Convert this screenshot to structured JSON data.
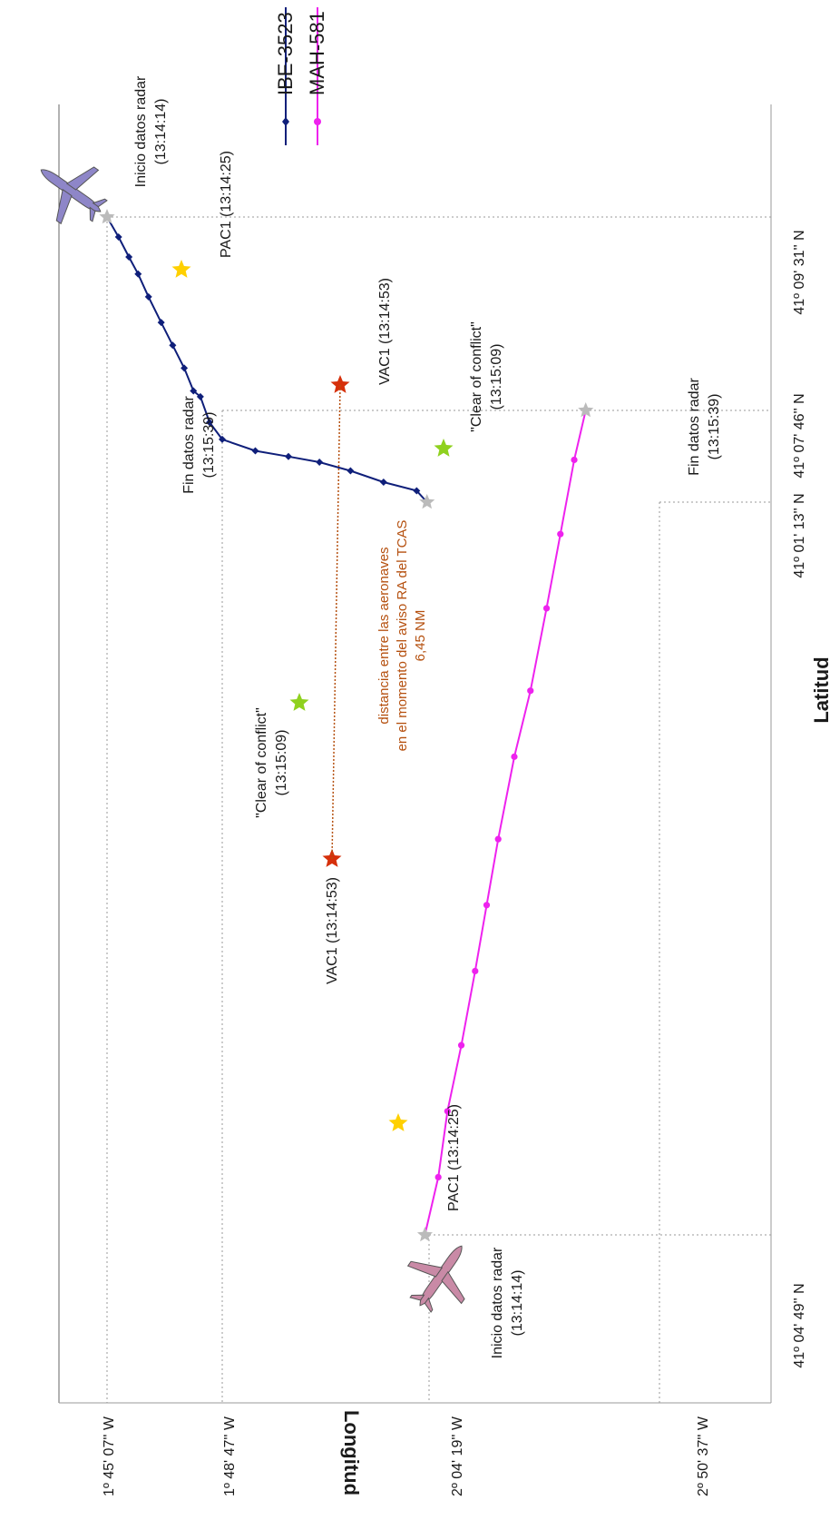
{
  "chart_data": {
    "type": "line",
    "xlabel": "Latitud",
    "ylabel": "Longitud",
    "x_ticks": [
      "41º 09' 31'' N",
      "41º 07' 46'' N",
      "41º 01' 13'' N",
      "41º 04' 49'' N"
    ],
    "y_ticks": [
      "1º 45' 07'' W",
      "1º 48' 47'' W",
      "2º 04' 19'' W",
      "2º 50' 37'' W"
    ],
    "grid": "dotted reference lines",
    "legend_position": "top-right",
    "series": [
      {
        "name": "IBE-3523",
        "color": "#0f1f7a",
        "marker": "diamond",
        "points": [
          {
            "lat": 0.0,
            "lon": 0.0
          },
          {
            "lat": 0.07,
            "lon": 0.1
          },
          {
            "lat": 0.14,
            "lon": 0.19
          },
          {
            "lat": 0.2,
            "lon": 0.27
          },
          {
            "lat": 0.28,
            "lon": 0.36
          },
          {
            "lat": 0.37,
            "lon": 0.47
          },
          {
            "lat": 0.45,
            "lon": 0.57
          },
          {
            "lat": 0.53,
            "lon": 0.67
          },
          {
            "lat": 0.61,
            "lon": 0.75
          },
          {
            "lat": 0.63,
            "lon": 0.81
          },
          {
            "lat": 0.72,
            "lon": 0.89
          },
          {
            "lat": 0.78,
            "lon": 1.0
          },
          {
            "lat": 0.82,
            "lon": 1.16
          },
          {
            "lat": 0.84,
            "lon": 1.32
          },
          {
            "lat": 0.86,
            "lon": 1.47
          },
          {
            "lat": 0.89,
            "lon": 1.62
          },
          {
            "lat": 0.93,
            "lon": 1.78
          },
          {
            "lat": 0.96,
            "lon": 1.94
          },
          {
            "lat": 1.0,
            "lon": 1.99
          }
        ]
      },
      {
        "name": "MAH-581",
        "color": "#ee22ee",
        "marker": "circle",
        "points": [
          {
            "lat": 1.0,
            "lon": 2.68
          },
          {
            "lat": 0.94,
            "lon": 2.63
          },
          {
            "lat": 0.85,
            "lon": 2.57
          },
          {
            "lat": 0.76,
            "lon": 2.51
          },
          {
            "lat": 0.66,
            "lon": 2.44
          },
          {
            "lat": 0.58,
            "lon": 2.37
          },
          {
            "lat": 0.48,
            "lon": 2.3
          },
          {
            "lat": 0.4,
            "lon": 2.25
          },
          {
            "lat": 0.32,
            "lon": 2.2
          },
          {
            "lat": 0.23,
            "lon": 2.14
          },
          {
            "lat": 0.15,
            "lon": 2.08
          },
          {
            "lat": 0.07,
            "lon": 2.04
          },
          {
            "lat": 0.0,
            "lon": 1.98
          }
        ]
      }
    ],
    "events": [
      {
        "type": "start",
        "series": "IBE-3523",
        "label": "Inicio datos radar",
        "time": "(13:14:14)",
        "color": "#bbbbbb"
      },
      {
        "type": "PAC1",
        "series": "IBE-3523",
        "label": "PAC1 (13:14:25)",
        "color": "#ffd000"
      },
      {
        "type": "VAC1",
        "series": "IBE-3523",
        "label": "VAC1 (13:14:53)",
        "color": "#d6300b"
      },
      {
        "type": "clear",
        "series": "IBE-3523",
        "label": "\"Clear of conflict\"",
        "time": "(13:15:09)",
        "color": "#8fd11f"
      },
      {
        "type": "end",
        "series": "IBE-3523",
        "label": "Fin datos radar",
        "time": "(13:15:39)",
        "color": "#bbbbbb"
      },
      {
        "type": "start",
        "series": "MAH-581",
        "label": "Inicio datos radar",
        "time": "(13:14:14)",
        "color": "#bbbbbb"
      },
      {
        "type": "PAC1",
        "series": "MAH-581",
        "label": "PAC1 (13:14:25)",
        "color": "#ffd000"
      },
      {
        "type": "VAC1",
        "series": "MAH-581",
        "label": "VAC1 (13:14:53)",
        "color": "#d6300b"
      },
      {
        "type": "clear",
        "series": "MAH-581",
        "label": "\"Clear of conflict\"",
        "time": "(13:15:09)",
        "color": "#8fd11f"
      },
      {
        "type": "end",
        "series": "MAH-581",
        "label": "Fin datos radar",
        "time": "(13:15:39)",
        "color": "#bbbbbb"
      }
    ],
    "annotation": {
      "line1": "distancia entre las aeronaves",
      "line2": "en el momento del aviso RA del TCAS",
      "line3": "6,45 NM",
      "color": "#b5500f"
    },
    "aircraft_icons": [
      {
        "series": "IBE-3523",
        "icon": "airplane-icon",
        "color": "#8e86c8"
      },
      {
        "series": "MAH-581",
        "icon": "airplane-icon",
        "color": "#c98aa6"
      }
    ]
  }
}
